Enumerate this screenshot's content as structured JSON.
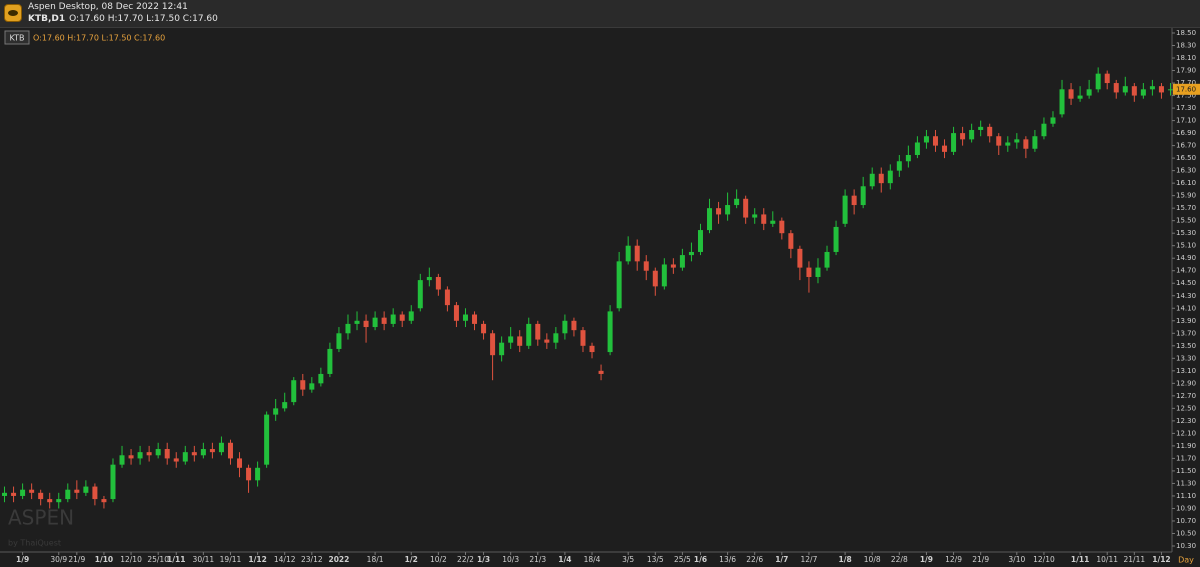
{
  "header": {
    "app_title": "Aspen Desktop, 08 Dec 2022 12:41",
    "symbol": "KTB,D1",
    "ohlc": "O:17.60 H:17.70 L:17.50 C:17.60"
  },
  "chart_data": {
    "type": "candlestick",
    "name": "KTB",
    "legend_ohlc": "O:17.60 H:17.70 L:17.50 C:17.60",
    "up_color": "#22c03c",
    "down_color": "#e0533f",
    "categories": [
      null,
      null,
      "1/9",
      null,
      null,
      null,
      "30/9",
      null,
      "21/9",
      null,
      null,
      "1/10",
      null,
      null,
      "12/10",
      null,
      null,
      "25/10",
      null,
      "1/11",
      null,
      null,
      "30/11",
      null,
      null,
      "19/11",
      null,
      null,
      "1/12",
      null,
      null,
      "14/12",
      null,
      null,
      "23/12",
      null,
      null,
      "2022",
      null,
      null,
      null,
      "18/1",
      null,
      null,
      null,
      "1/2",
      null,
      null,
      "10/2",
      null,
      null,
      "22/2",
      null,
      "1/3",
      null,
      null,
      "10/3",
      null,
      null,
      "21/3",
      null,
      null,
      "1/4",
      null,
      null,
      "18/4",
      null,
      null,
      null,
      "3/5",
      null,
      null,
      "13/5",
      null,
      null,
      "25/5",
      null,
      "1/6",
      null,
      null,
      "13/6",
      null,
      null,
      "22/6",
      null,
      null,
      "1/7",
      null,
      null,
      "12/7",
      null,
      null,
      null,
      "1/8",
      null,
      null,
      "10/8",
      null,
      null,
      "22/8",
      null,
      null,
      "1/9",
      null,
      null,
      "12/9",
      null,
      null,
      "21/9",
      null,
      null,
      null,
      "3/10",
      null,
      null,
      "12/10",
      null,
      null,
      null,
      "1/11",
      null,
      null,
      "10/11",
      null,
      null,
      "21/11",
      null,
      null,
      "1/12",
      null
    ],
    "open": [
      11.1,
      11.15,
      11.1,
      11.2,
      11.15,
      11.05,
      11.0,
      11.05,
      11.2,
      11.15,
      11.25,
      11.05,
      11.05,
      11.6,
      11.75,
      11.7,
      11.8,
      11.75,
      11.85,
      11.7,
      11.65,
      11.8,
      11.75,
      11.85,
      11.8,
      11.95,
      11.7,
      11.55,
      11.35,
      11.6,
      12.4,
      12.5,
      12.6,
      12.95,
      12.8,
      12.9,
      13.05,
      13.45,
      13.7,
      13.85,
      13.9,
      13.8,
      13.95,
      13.85,
      14.0,
      13.9,
      14.1,
      14.55,
      14.6,
      14.4,
      14.15,
      13.9,
      14.0,
      13.85,
      13.7,
      13.35,
      13.55,
      13.65,
      13.5,
      13.85,
      13.6,
      13.55,
      13.7,
      13.9,
      13.75,
      13.5,
      13.1,
      13.4,
      14.1,
      14.85,
      15.1,
      14.85,
      14.7,
      14.45,
      14.8,
      14.75,
      14.95,
      15.0,
      15.35,
      15.7,
      15.6,
      15.75,
      15.85,
      15.55,
      15.6,
      15.45,
      15.5,
      15.3,
      15.05,
      14.75,
      14.6,
      14.75,
      15.0,
      15.45,
      15.9,
      15.75,
      16.05,
      16.25,
      16.1,
      16.3,
      16.45,
      16.55,
      16.75,
      16.85,
      16.7,
      16.6,
      16.9,
      16.8,
      16.95,
      17.0,
      16.85,
      16.7,
      16.75,
      16.8,
      16.65,
      16.85,
      17.05,
      17.2,
      17.6,
      17.45,
      17.5,
      17.6,
      17.85,
      17.7,
      17.55,
      17.65,
      17.5,
      17.6,
      17.65,
      17.6
    ],
    "high": [
      11.25,
      11.25,
      11.3,
      11.3,
      11.2,
      11.15,
      11.15,
      11.3,
      11.35,
      11.35,
      11.3,
      11.1,
      11.7,
      11.9,
      11.85,
      11.9,
      11.9,
      11.95,
      11.95,
      11.8,
      11.9,
      11.9,
      11.95,
      11.95,
      12.05,
      12.0,
      11.8,
      11.6,
      11.65,
      12.45,
      12.65,
      12.75,
      13.0,
      13.05,
      13.0,
      13.15,
      13.55,
      13.8,
      14.0,
      14.05,
      14.0,
      14.05,
      14.05,
      14.1,
      14.05,
      14.15,
      14.65,
      14.75,
      14.65,
      14.45,
      14.2,
      14.1,
      14.05,
      13.9,
      13.75,
      13.65,
      13.8,
      13.75,
      13.95,
      13.9,
      13.7,
      13.8,
      14.0,
      13.95,
      13.8,
      13.55,
      13.2,
      14.15,
      15.0,
      15.25,
      15.2,
      14.95,
      14.75,
      14.9,
      14.9,
      15.05,
      15.15,
      15.45,
      15.85,
      15.8,
      15.95,
      16.0,
      15.9,
      15.7,
      15.7,
      15.65,
      15.55,
      15.35,
      15.1,
      14.85,
      14.9,
      15.1,
      15.5,
      16.0,
      16.0,
      16.2,
      16.35,
      16.35,
      16.4,
      16.55,
      16.7,
      16.85,
      16.95,
      16.95,
      16.8,
      17.0,
      17.0,
      17.05,
      17.1,
      17.05,
      16.9,
      16.85,
      16.9,
      16.85,
      16.95,
      17.15,
      17.25,
      17.75,
      17.7,
      17.65,
      17.75,
      17.95,
      17.9,
      17.75,
      17.8,
      17.7,
      17.7,
      17.75,
      17.7,
      17.7
    ],
    "low": [
      11.0,
      11.0,
      11.05,
      11.05,
      10.95,
      10.9,
      10.9,
      11.0,
      11.05,
      11.1,
      10.95,
      10.9,
      11.0,
      11.55,
      11.6,
      11.6,
      11.65,
      11.7,
      11.6,
      11.55,
      11.6,
      11.65,
      11.7,
      11.7,
      11.75,
      11.6,
      11.4,
      11.15,
      11.25,
      11.55,
      12.3,
      12.45,
      12.55,
      12.7,
      12.75,
      12.85,
      13.0,
      13.4,
      13.6,
      13.75,
      13.55,
      13.75,
      13.75,
      13.8,
      13.8,
      13.85,
      14.05,
      14.45,
      14.3,
      14.05,
      13.8,
      13.8,
      13.75,
      13.6,
      12.95,
      13.25,
      13.45,
      13.4,
      13.45,
      13.5,
      13.45,
      13.45,
      13.6,
      13.65,
      13.4,
      13.3,
      12.95,
      13.35,
      14.05,
      14.8,
      14.7,
      14.55,
      14.3,
      14.4,
      14.65,
      14.7,
      14.85,
      14.95,
      15.3,
      15.45,
      15.5,
      15.7,
      15.45,
      15.45,
      15.35,
      15.4,
      15.2,
      14.9,
      14.55,
      14.35,
      14.5,
      14.7,
      14.95,
      15.4,
      15.6,
      15.7,
      16.0,
      15.95,
      16.0,
      16.2,
      16.35,
      16.5,
      16.65,
      16.6,
      16.5,
      16.55,
      16.7,
      16.75,
      16.85,
      16.75,
      16.55,
      16.6,
      16.65,
      16.5,
      16.6,
      16.8,
      17.0,
      17.15,
      17.35,
      17.4,
      17.45,
      17.55,
      17.6,
      17.45,
      17.5,
      17.4,
      17.45,
      17.5,
      17.45,
      17.5
    ],
    "close": [
      11.15,
      11.1,
      11.2,
      11.15,
      11.05,
      11.0,
      11.05,
      11.2,
      11.15,
      11.25,
      11.05,
      11.0,
      11.6,
      11.75,
      11.7,
      11.8,
      11.75,
      11.85,
      11.7,
      11.65,
      11.8,
      11.75,
      11.85,
      11.8,
      11.95,
      11.7,
      11.55,
      11.35,
      11.55,
      12.4,
      12.5,
      12.6,
      12.95,
      12.8,
      12.9,
      13.05,
      13.45,
      13.7,
      13.85,
      13.9,
      13.8,
      13.95,
      13.85,
      14.0,
      13.9,
      14.05,
      14.55,
      14.6,
      14.4,
      14.15,
      13.9,
      14.0,
      13.85,
      13.7,
      13.35,
      13.55,
      13.65,
      13.5,
      13.85,
      13.6,
      13.55,
      13.7,
      13.9,
      13.75,
      13.5,
      13.4,
      13.05,
      14.05,
      14.85,
      15.1,
      14.85,
      14.7,
      14.45,
      14.8,
      14.75,
      14.95,
      15.0,
      15.35,
      15.7,
      15.6,
      15.75,
      15.85,
      15.55,
      15.6,
      15.45,
      15.5,
      15.3,
      15.05,
      14.75,
      14.6,
      14.75,
      15.0,
      15.4,
      15.9,
      15.75,
      16.05,
      16.25,
      16.1,
      16.3,
      16.45,
      16.55,
      16.75,
      16.85,
      16.7,
      16.6,
      16.9,
      16.8,
      16.95,
      17.0,
      16.85,
      16.7,
      16.75,
      16.8,
      16.65,
      16.85,
      17.05,
      17.15,
      17.6,
      17.45,
      17.5,
      17.6,
      17.85,
      17.7,
      17.55,
      17.65,
      17.5,
      17.6,
      17.65,
      17.55,
      17.6
    ],
    "ylim": [
      10.22,
      18.58
    ],
    "yticks": [
      {
        "value": 10.3,
        "label": "10.30"
      },
      {
        "value": 10.5,
        "label": "10.50"
      },
      {
        "value": 10.7,
        "label": "10.70"
      },
      {
        "value": 10.9,
        "label": "10.90"
      },
      {
        "value": 11.1,
        "label": "11.10"
      },
      {
        "value": 11.3,
        "label": "11.30"
      },
      {
        "value": 11.5,
        "label": "11.50"
      },
      {
        "value": 11.7,
        "label": "11.70"
      },
      {
        "value": 11.9,
        "label": "11.90"
      },
      {
        "value": 12.1,
        "label": "12.10"
      },
      {
        "value": 12.3,
        "label": "12.30"
      },
      {
        "value": 12.5,
        "label": "12.50"
      },
      {
        "value": 12.7,
        "label": "12.70"
      },
      {
        "value": 12.9,
        "label": "12.90"
      },
      {
        "value": 13.1,
        "label": "13.10"
      },
      {
        "value": 13.3,
        "label": "13.30"
      },
      {
        "value": 13.5,
        "label": "13.50"
      },
      {
        "value": 13.7,
        "label": "13.70"
      },
      {
        "value": 13.9,
        "label": "13.90"
      },
      {
        "value": 14.1,
        "label": "14.10"
      },
      {
        "value": 14.3,
        "label": "14.30"
      },
      {
        "value": 14.5,
        "label": "14.50"
      },
      {
        "value": 14.7,
        "label": "14.70"
      },
      {
        "value": 14.9,
        "label": "14.90"
      },
      {
        "value": 15.1,
        "label": "15.10"
      },
      {
        "value": 15.3,
        "label": "15.30"
      },
      {
        "value": 15.5,
        "label": "15.50"
      },
      {
        "value": 15.7,
        "label": "15.70"
      },
      {
        "value": 15.9,
        "label": "15.90"
      },
      {
        "value": 16.1,
        "label": "16.10"
      },
      {
        "value": 16.3,
        "label": "16.30"
      },
      {
        "value": 16.5,
        "label": "16.50"
      },
      {
        "value": 16.7,
        "label": "16.70"
      },
      {
        "value": 16.9,
        "label": "16.90"
      },
      {
        "value": 17.1,
        "label": "17.10"
      },
      {
        "value": 17.3,
        "label": "17.30"
      },
      {
        "value": 17.5,
        "label": "17.50"
      },
      {
        "value": 17.7,
        "label": "17.70"
      },
      {
        "value": 17.9,
        "label": "17.90"
      },
      {
        "value": 18.1,
        "label": "18.10"
      },
      {
        "value": 18.3,
        "label": "18.30"
      },
      {
        "value": 18.5,
        "label": "18.50"
      }
    ],
    "last_price_label": "17.60",
    "timeframe_label": "Day",
    "watermark": "ASPEN",
    "watermark_sub": "by ThaiQuest"
  }
}
